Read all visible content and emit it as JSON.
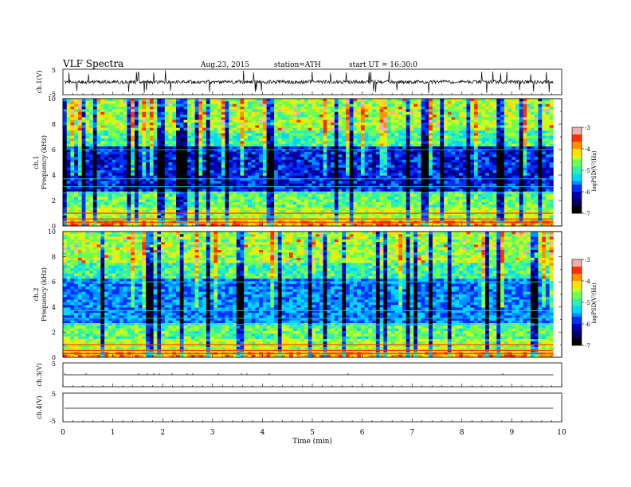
{
  "header": {
    "title": "VLF  Spectra",
    "date": "Aug.23, 2015",
    "station": "station=ATH",
    "start": "start  UT  =   16:30:0"
  },
  "colorbar": {
    "label": "logPSD(V²/Hz)",
    "ticks": [
      "-3",
      "-4",
      "-5",
      "-6",
      "-7"
    ],
    "colors": [
      "#e8e8e8",
      "#ff4040",
      "#ff8c00",
      "#ffe000",
      "#7cff40",
      "#00d0ff",
      "#0040ff",
      "#000090",
      "#000000"
    ]
  },
  "chart_data": {
    "type": "heatmap",
    "xlabel": "Time  (min)",
    "xlim": [
      0,
      10
    ],
    "x_ticks": [
      "0",
      "1",
      "2",
      "3",
      "4",
      "5",
      "6",
      "7",
      "8",
      "9",
      "10"
    ],
    "panels": [
      {
        "kind": "waveform",
        "ylabel": "ch.1(V)",
        "ylim": [
          -5,
          5
        ],
        "y_ticks": [
          "5",
          "-5"
        ]
      },
      {
        "kind": "spectrogram",
        "channel_label": "ch.1",
        "ylabel": "Frequency  (kHz)",
        "ylim": [
          0,
          10
        ],
        "y_ticks": [
          "0",
          "2",
          "4",
          "6",
          "8",
          "10"
        ],
        "z_range": [
          -7,
          -3
        ]
      },
      {
        "kind": "spectrogram",
        "channel_label": "ch.2",
        "ylabel": "Frequency  (kHz)",
        "ylim": [
          0,
          10
        ],
        "y_ticks": [
          "0",
          "2",
          "4",
          "6",
          "8",
          "10"
        ],
        "z_range": [
          -7,
          -3
        ]
      },
      {
        "kind": "waveform",
        "ylabel": "ch.3(V)",
        "ylim": [
          -5,
          5
        ],
        "y_ticks": [
          "5",
          "-5"
        ]
      },
      {
        "kind": "waveform",
        "ylabel": "ch.4(V)",
        "ylim": [
          -5,
          5
        ],
        "y_ticks": [
          "5",
          "-5"
        ]
      }
    ],
    "data_end_min": 9.83
  }
}
